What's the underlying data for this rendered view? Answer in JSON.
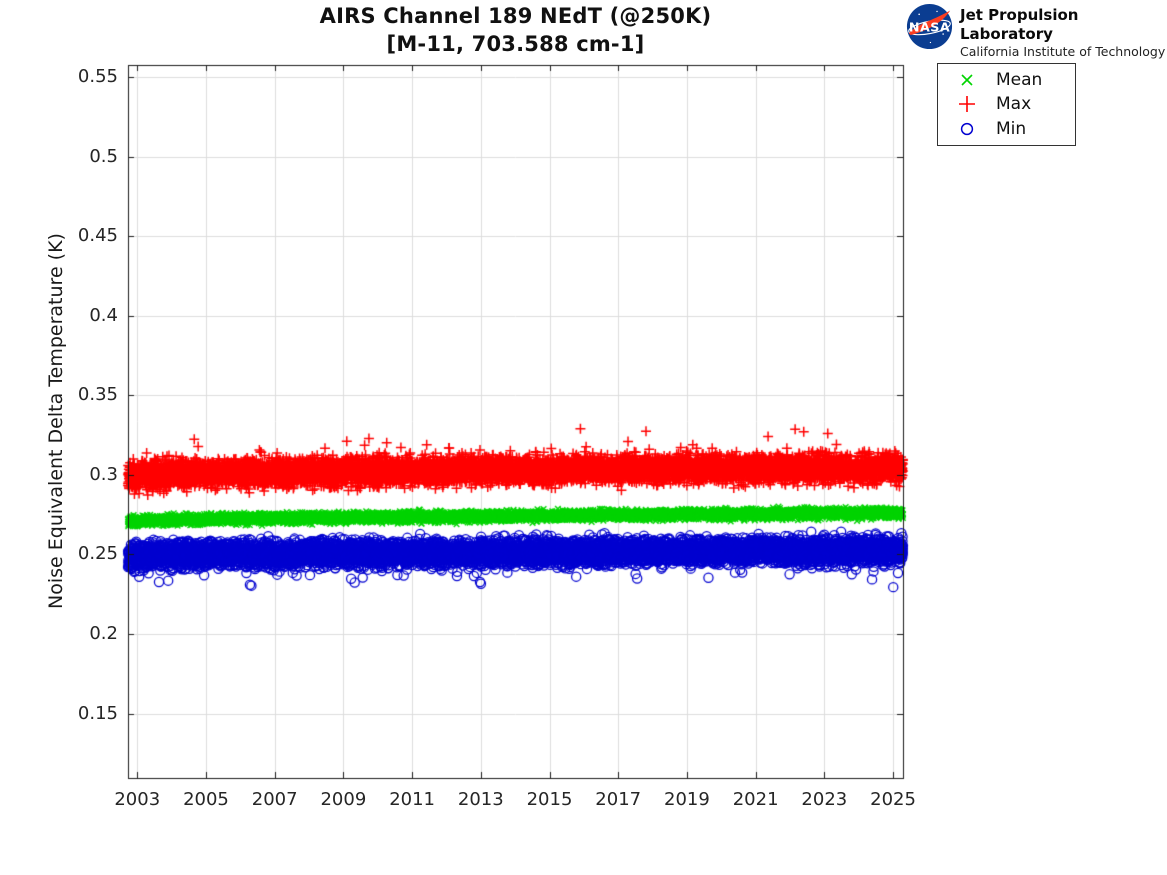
{
  "header": {
    "title_line1": "AIRS Channel 189 NEdT (@250K)",
    "title_line2": "[M-11, 703.588 cm-1]",
    "logo": {
      "org": "NASA",
      "name": "Jet Propulsion Laboratory",
      "sub": "California Institute of Technology",
      "nasa_blue": "#0b3d91",
      "nasa_red": "#fc3d21"
    }
  },
  "chart_data": {
    "type": "scatter",
    "title": "AIRS Channel 189 NEdT (@250K) [M-11, 703.588 cm-1]",
    "xlabel": "",
    "ylabel": "Noise Equivalent Delta Temperature (K)",
    "xlim": [
      2002.73,
      2025.29
    ],
    "ylim": [
      0.1095,
      0.5575
    ],
    "x_ticks": [
      2003,
      2005,
      2007,
      2009,
      2011,
      2013,
      2015,
      2017,
      2019,
      2021,
      2023,
      2025
    ],
    "x_tick_labels": [
      "2003",
      "2005",
      "2007",
      "2009",
      "2011",
      "2013",
      "2015",
      "2017",
      "2019",
      "2021",
      "2023",
      "2025"
    ],
    "y_ticks": [
      0.15,
      0.2,
      0.25,
      0.3,
      0.35,
      0.4,
      0.45,
      0.5,
      0.55
    ],
    "y_tick_labels": [
      "0.15",
      "0.2",
      "0.25",
      "0.3",
      "0.35",
      "0.4",
      "0.45",
      "0.5",
      "0.55"
    ],
    "grid": true,
    "grid_color": "#dcdcdc",
    "box_color": "#1a1a1a",
    "legend": {
      "position": "outside-top-right",
      "entries": [
        {
          "label": "Mean",
          "marker": "x",
          "color": "#00d400"
        },
        {
          "label": "Max",
          "marker": "+",
          "color": "#ff0000"
        },
        {
          "label": "Min",
          "marker": "o",
          "color": "#0000d0"
        }
      ]
    },
    "series": [
      {
        "name": "Mean",
        "marker": "x",
        "color": "#00d400",
        "description": "dense daily scatter band, slow upward drift",
        "trend_x": [
          2002.73,
          2005,
          2008,
          2011,
          2014,
          2017,
          2020,
          2023,
          2025.29
        ],
        "trend_y": [
          0.271,
          0.2721,
          0.2729,
          0.2735,
          0.2741,
          0.2747,
          0.2752,
          0.2757,
          0.2761
        ],
        "spread_sigma": 0.0015,
        "n_points": 8000,
        "outlier_frac": 0.0,
        "outlier_dir": 0,
        "outlier_min": 0,
        "outlier_max": 0,
        "notable_outliers": []
      },
      {
        "name": "Max",
        "marker": "+",
        "color": "#ff0000",
        "description": "dense daily scatter band with sparse high outliers",
        "trend_x": [
          2002.73,
          2004,
          2008,
          2012,
          2016,
          2020,
          2024,
          2025.29
        ],
        "trend_y": [
          0.2985,
          0.3008,
          0.3018,
          0.3026,
          0.3031,
          0.3036,
          0.3042,
          0.304
        ],
        "spread_sigma": 0.0042,
        "n_points": 8000,
        "outlier_frac": 0.006,
        "outlier_dir": 1,
        "outlier_min": 0.006,
        "outlier_max": 0.021,
        "notable_outliers": [
          {
            "x": 2015.9,
            "y": 0.329
          },
          {
            "x": 2022.4,
            "y": 0.327
          },
          {
            "x": 2023.1,
            "y": 0.326
          }
        ]
      },
      {
        "name": "Min",
        "marker": "o",
        "color": "#0000d0",
        "description": "dense daily scatter band with sparse low outliers",
        "trend_x": [
          2002.73,
          2008,
          2014,
          2020,
          2025.29
        ],
        "trend_y": [
          0.2495,
          0.2505,
          0.2513,
          0.2522,
          0.2528
        ],
        "spread_sigma": 0.0038,
        "n_points": 8000,
        "outlier_frac": 0.012,
        "outlier_dir": -1,
        "outlier_min": 0.004,
        "outlier_max": 0.0145,
        "notable_outliers": [
          {
            "x": 2003.9,
            "y": 0.2335
          },
          {
            "x": 2023.8,
            "y": 0.2375
          }
        ]
      }
    ]
  }
}
